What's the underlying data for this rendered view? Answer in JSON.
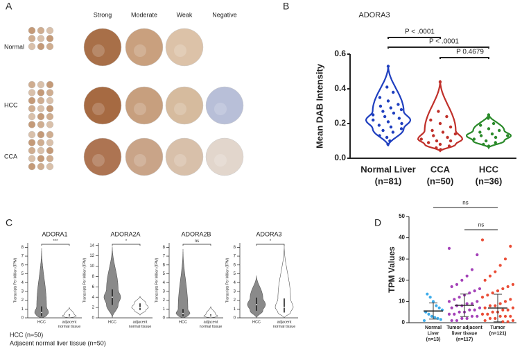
{
  "panel_a": {
    "label": "A",
    "columns": [
      "Strong",
      "Moderate",
      "Weak",
      "Negative"
    ],
    "rows": [
      "Normal",
      "HCC",
      "CCA"
    ]
  },
  "panel_c": {
    "label": "C",
    "legend": [
      "HCC (n=50)",
      "Adjacent normal liver tissue (n=50)"
    ]
  },
  "chart_data": [
    {
      "type": "violin",
      "panel": "B",
      "title": "ADORA3",
      "y_label": "Mean DAB Intensity",
      "categories": [
        [
          "Normal Liver",
          "(n=81)"
        ],
        [
          "CCA",
          "(n=50)"
        ],
        [
          "HCC",
          "(n=36)"
        ]
      ],
      "violin_fill": false,
      "series": [
        {
          "color": "#1f3fbf",
          "min": 0.07,
          "q1": 0.17,
          "median": 0.22,
          "q3": 0.27,
          "max": 0.535,
          "points": [
            0.53,
            0.41,
            0.38,
            0.35,
            0.33,
            0.31,
            0.3,
            0.29,
            0.28,
            0.27,
            0.26,
            0.25,
            0.24,
            0.23,
            0.22,
            0.21,
            0.2,
            0.19,
            0.18,
            0.17,
            0.16,
            0.15,
            0.13,
            0.12,
            0.1,
            0.08
          ]
        },
        {
          "color": "#c0302a",
          "min": 0.04,
          "q1": 0.08,
          "median": 0.11,
          "q3": 0.16,
          "max": 0.45,
          "points": [
            0.44,
            0.27,
            0.24,
            0.22,
            0.2,
            0.18,
            0.16,
            0.15,
            0.14,
            0.13,
            0.12,
            0.11,
            0.1,
            0.1,
            0.09,
            0.08,
            0.07,
            0.06,
            0.05
          ]
        },
        {
          "color": "#2a8a2a",
          "min": 0.06,
          "q1": 0.1,
          "median": 0.13,
          "q3": 0.16,
          "max": 0.255,
          "points": [
            0.25,
            0.23,
            0.2,
            0.19,
            0.17,
            0.16,
            0.15,
            0.14,
            0.13,
            0.13,
            0.12,
            0.11,
            0.1,
            0.09,
            0.08,
            0.07
          ]
        }
      ],
      "ylim": [
        0,
        0.6
      ],
      "yticks": [
        {
          "value": 0,
          "label": "0.0"
        },
        {
          "value": 0.2,
          "label": "0.2"
        },
        {
          "value": 0.4,
          "label": "0.4"
        },
        {
          "value": 0.6,
          "label": "0.6"
        }
      ],
      "annotations": [
        {
          "text": "P < .0001",
          "from": 0,
          "to": 1,
          "color": "#c0302a"
        },
        {
          "text": "P < .0001",
          "from": 0,
          "to": 2,
          "color": "#c0302a"
        },
        {
          "text": "P 0.4679",
          "from": 1,
          "to": 2,
          "color": "#222222"
        }
      ]
    },
    {
      "type": "violin",
      "title": "ADORA1",
      "y_label": "Transcripts Per Million (TPM)",
      "categories": [
        [
          "HCC"
        ],
        [
          "adjacent",
          "normal tissue"
        ]
      ],
      "violin_fill": true,
      "series": [
        {
          "color": "#8a8a8a",
          "min": 0,
          "q1": 0.2,
          "median": 0.6,
          "q3": 1.3,
          "max": 7.9
        },
        {
          "color": "#ffffff",
          "min": 0,
          "q1": 0.1,
          "median": 0.2,
          "q3": 0.4,
          "max": 1.2
        }
      ],
      "ylim": [
        0,
        8.5
      ],
      "yticks": [
        0,
        1,
        2,
        3,
        4,
        5,
        6,
        7,
        8
      ],
      "annotations": [
        {
          "text": "***",
          "from": 0,
          "to": 1,
          "color": "#222222"
        }
      ]
    },
    {
      "type": "violin",
      "title": "ADORA2A",
      "y_label": "Transcripts Per Million (TPM)",
      "categories": [
        [
          "HCC"
        ],
        [
          "adjacent",
          "normal tissue"
        ]
      ],
      "violin_fill": true,
      "series": [
        {
          "color": "#8a8a8a",
          "min": 0,
          "q1": 2.5,
          "median": 4,
          "q3": 5.5,
          "max": 13.8
        },
        {
          "color": "#ffffff",
          "min": 0.5,
          "q1": 1.5,
          "median": 2,
          "q3": 2.8,
          "max": 4.2
        }
      ],
      "ylim": [
        0,
        14.5
      ],
      "yticks": [
        0,
        2,
        4,
        6,
        8,
        10,
        12,
        14
      ],
      "annotations": [
        {
          "text": "*",
          "from": 0,
          "to": 1,
          "color": "#222222"
        }
      ]
    },
    {
      "type": "violin",
      "title": "ADORA2B",
      "y_label": "Transcripts Per Million (TPM)",
      "categories": [
        [
          "HCC"
        ],
        [
          "adjacent",
          "normal tissue"
        ]
      ],
      "violin_fill": true,
      "series": [
        {
          "color": "#8a8a8a",
          "min": 0,
          "q1": 0.2,
          "median": 0.5,
          "q3": 1,
          "max": 7.8
        },
        {
          "color": "#ffffff",
          "min": 0,
          "q1": 0.1,
          "median": 0.2,
          "q3": 0.4,
          "max": 1.3
        }
      ],
      "ylim": [
        0,
        8.5
      ],
      "yticks": [
        0,
        1,
        2,
        3,
        4,
        5,
        6,
        7,
        8
      ],
      "annotations": [
        {
          "text": "ns",
          "from": 0,
          "to": 1,
          "color": "#222222"
        }
      ]
    },
    {
      "type": "violin",
      "title": "ADORA3",
      "y_label": "Transcripts Per Million (TPM)",
      "categories": [
        [
          "HCC"
        ],
        [
          "adjacent",
          "normal tissue"
        ]
      ],
      "violin_fill": true,
      "series": [
        {
          "color": "#8a8a8a",
          "min": 0,
          "q1": 0.8,
          "median": 1.5,
          "q3": 2.3,
          "max": 4.8
        },
        {
          "color": "#ffffff",
          "min": 0,
          "q1": 0.6,
          "median": 1.2,
          "q3": 2.2,
          "max": 8.2
        }
      ],
      "ylim": [
        0,
        8.5
      ],
      "yticks": [
        0,
        1,
        2,
        3,
        4,
        5,
        6,
        7,
        8
      ],
      "annotations": [
        {
          "text": "*",
          "from": 0,
          "to": 1,
          "color": "#222222"
        }
      ]
    },
    {
      "type": "dotplot",
      "panel": "D",
      "y_label": "TPM Values",
      "categories": [
        [
          "Normal",
          "Liver",
          "(n=13)"
        ],
        [
          "Tumor adjacent",
          "liver tissue",
          "(n=117)"
        ],
        [
          "Tumor",
          "(n=121)"
        ]
      ],
      "series": [
        {
          "color": "#29a3e8",
          "mean": 5.5,
          "sd": 3.8,
          "points": [
            1,
            1.5,
            2,
            2.5,
            3,
            4,
            5,
            6,
            7,
            8,
            10,
            12,
            13.5
          ]
        },
        {
          "color": "#9a2eb0",
          "mean": 8.2,
          "sd": 5.3,
          "points": [
            35,
            32,
            25,
            22,
            20,
            18,
            17,
            16,
            15,
            14,
            13,
            12,
            11,
            10,
            10,
            9,
            9,
            8,
            8,
            7,
            7,
            6,
            6,
            5,
            5,
            4,
            4,
            3,
            3,
            2,
            2,
            1,
            1
          ]
        },
        {
          "color": "#e83a20",
          "mean": 6.9,
          "sd": 6.5,
          "points": [
            39,
            36,
            30,
            27,
            24,
            22,
            20,
            18,
            17,
            16,
            15,
            14,
            13,
            12,
            11,
            10,
            9,
            8,
            8,
            7,
            7,
            6,
            6,
            5,
            5,
            4,
            4,
            3,
            3,
            3,
            2,
            2,
            1,
            1,
            0.5,
            0.5
          ]
        }
      ],
      "ylim": [
        0,
        50
      ],
      "yticks": [
        0,
        10,
        20,
        30,
        40,
        50
      ],
      "annotations": [
        {
          "text": "ns",
          "from": 0,
          "to": 2,
          "color": "#222222"
        },
        {
          "text": "ns",
          "from": 1,
          "to": 2,
          "color": "#222222"
        }
      ]
    }
  ]
}
